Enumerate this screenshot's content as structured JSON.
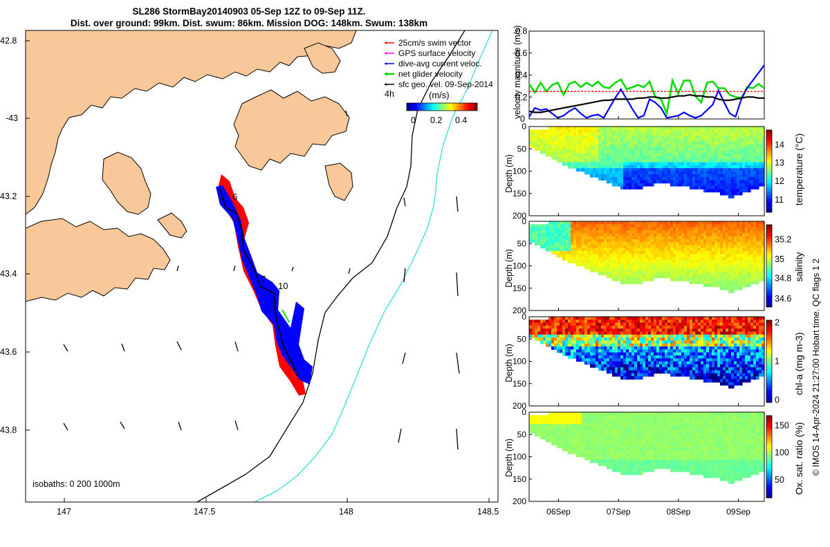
{
  "title": {
    "line1": "SL286 StormBay20140903 05-Sep 12Z to 09-Sep 11Z.",
    "line2": "Dist. over ground: 99km. Dist. swum: 86km. Mission DOG: 148km. Swum: 138km"
  },
  "map": {
    "lon_ticks": [
      "147",
      "147.5",
      "148",
      "148.5"
    ],
    "lat_ticks": [
      "42.8",
      "-43",
      "43.2",
      "43.4",
      "43.6",
      "43.8"
    ],
    "legend": [
      {
        "label": "25cm/s swim vector",
        "color": "#ff0000"
      },
      {
        "label": "GPS surface velocity",
        "color": "#ff00ff"
      },
      {
        "label": "dive-avg current veloc.",
        "color": "#0000ff"
      },
      {
        "label": "net glider velocity",
        "color": "#00dd00"
      },
      {
        "label": "sfc geo. vel. 09-Sep-2014",
        "color": "#000000"
      }
    ],
    "colorbar": {
      "hour_label": "4h",
      "units": "(m/s)",
      "ticks": [
        "0",
        "0.2",
        "0.4"
      ]
    },
    "track_labels": [
      "6",
      "7",
      "10"
    ],
    "isobaths_label": "isobaths: 0   200  1000m",
    "colors": {
      "land": "#f9c898",
      "track": "#000000",
      "shelf_200": "#000000",
      "shelf_1000": "#33dddd"
    }
  },
  "velocity_panel": {
    "ylabel": "velocity magnitude (m/s)",
    "yticks": [
      "0",
      "0.2",
      "0.4",
      "0.6",
      "0.8"
    ]
  },
  "sections": [
    {
      "key": "temperature",
      "label": "temperature (°C)",
      "cticks": [
        "11",
        "12",
        "13",
        "14"
      ]
    },
    {
      "key": "salinity",
      "label": "salinity",
      "cticks": [
        "34.6",
        "34.8",
        "35",
        "35.2"
      ]
    },
    {
      "key": "chla",
      "label": "chl-a (mg m-3)",
      "cticks": [
        "0",
        "1",
        "2"
      ]
    },
    {
      "key": "oxygen",
      "label": "Ox. sat. ratio (%)",
      "cticks": [
        "50",
        "100",
        "150"
      ]
    }
  ],
  "depth_label": "Depth (m)",
  "depth_ticks": [
    "0",
    "50",
    "100",
    "150",
    "200"
  ],
  "date_ticks": [
    "06Sep",
    "07Sep",
    "08Sep",
    "09Sep"
  ],
  "qc_label": "QC flags 1  2",
  "credit": "© IMOS 14-Apr-2024 21:27:00 Hobart time.",
  "chart_data": [
    {
      "type": "line",
      "title": "velocity magnitude",
      "ylabel": "velocity magnitude (m/s)",
      "ylim": [
        0,
        0.8
      ],
      "x_ticks": [
        "06Sep",
        "07Sep",
        "08Sep",
        "09Sep"
      ],
      "series": [
        {
          "color": "#00dd00",
          "values": [
            0.32,
            0.24,
            0.33,
            0.25,
            0.31,
            0.33,
            0.22,
            0.32,
            0.34,
            0.29,
            0.33,
            0.3,
            0.34,
            0.29,
            0.28,
            0.33,
            0.36,
            0.27,
            0.29,
            0.31,
            0.29,
            0.34,
            0.2,
            0.18,
            0.05,
            0.35,
            0.23,
            0.35,
            0.35,
            0.21,
            0.15,
            0.33,
            0.34,
            0.28,
            0.28,
            0.22,
            0.2,
            0.19,
            0.29,
            0.28,
            0.32,
            0.28
          ]
        },
        {
          "color": "#0000ff",
          "values": [
            0.02,
            0.1,
            0.08,
            0.09,
            0.05,
            0.01,
            0.03,
            0.07,
            0.1,
            0.05,
            0.01,
            0.03,
            0.04,
            0.01,
            0.1,
            0.19,
            0.27,
            0.18,
            0.09,
            0.01,
            0.03,
            0.18,
            0.15,
            0.1,
            0.01,
            0.02,
            0.03,
            0.06,
            0.03,
            0.01,
            0.03,
            0.08,
            0.13,
            0.26,
            0.15,
            0.05,
            0.02,
            0.18,
            0.28,
            0.35,
            0.42,
            0.49
          ]
        },
        {
          "color": "#000000",
          "values": [
            0.07,
            0.06,
            0.06,
            0.07,
            0.08,
            0.09,
            0.1,
            0.11,
            0.12,
            0.13,
            0.14,
            0.15,
            0.16,
            0.17,
            0.17,
            0.18,
            0.18,
            0.18,
            0.18,
            0.19,
            0.19,
            0.2,
            0.2,
            0.19,
            0.19,
            0.2,
            0.21,
            0.21,
            0.22,
            0.21,
            0.21,
            0.2,
            0.2,
            0.18,
            0.17,
            0.17,
            0.18,
            0.19,
            0.2,
            0.2,
            0.19,
            0.19
          ]
        },
        {
          "color": "#ff0000",
          "values": [
            0.25,
            0.25,
            0.25,
            0.25,
            0.25,
            0.25,
            0.25,
            0.25,
            0.25,
            0.25,
            0.25,
            0.25,
            0.25,
            0.25,
            0.25,
            0.25,
            0.25,
            0.25,
            0.25,
            0.25,
            0.25,
            0.25,
            0.25,
            0.25,
            0.25,
            0.25,
            0.25,
            0.25,
            0.25,
            0.25,
            0.25,
            0.25,
            0.25,
            0.25,
            0.25,
            0.25,
            0.25,
            0.25,
            0.25,
            0.25,
            0.25,
            0.25
          ]
        }
      ]
    },
    {
      "type": "heatmap",
      "ylabel": "Depth (m)",
      "ylim": [
        200,
        0
      ],
      "x_ticks": [
        "06Sep",
        "07Sep",
        "08Sep",
        "09Sep"
      ],
      "bottom_depth_profile": [
        45,
        55,
        70,
        85,
        95,
        105,
        115,
        125,
        135,
        142,
        138,
        130,
        128,
        132,
        135,
        140,
        145,
        150,
        160,
        150,
        140,
        132
      ]
    }
  ]
}
